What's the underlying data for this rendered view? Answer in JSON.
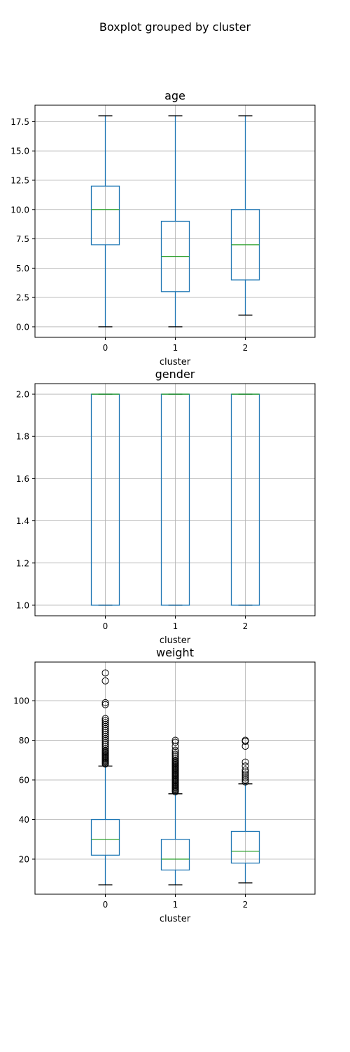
{
  "title": "Boxplot grouped by cluster",
  "chart_data": [
    {
      "type": "box",
      "title": "age",
      "xlabel": "cluster",
      "ylabel": "",
      "categories": [
        "0",
        "1",
        "2"
      ],
      "ylim": [
        -0.9,
        18.9
      ],
      "yticks": [
        0.0,
        2.5,
        5.0,
        7.5,
        10.0,
        12.5,
        15.0,
        17.5
      ],
      "ytick_labels": [
        "0.0",
        "2.5",
        "5.0",
        "7.5",
        "10.0",
        "12.5",
        "15.0",
        "17.5"
      ],
      "grid": true,
      "boxes": [
        {
          "category": "0",
          "whislo": 0,
          "q1": 7,
          "median": 10,
          "q3": 12,
          "whishi": 18,
          "fliers": []
        },
        {
          "category": "1",
          "whislo": 0,
          "q1": 3,
          "median": 6,
          "q3": 9,
          "whishi": 18,
          "fliers": []
        },
        {
          "category": "2",
          "whislo": 1,
          "q1": 4,
          "median": 7,
          "q3": 10,
          "whishi": 18,
          "fliers": []
        }
      ]
    },
    {
      "type": "box",
      "title": "gender",
      "xlabel": "cluster",
      "ylabel": "",
      "categories": [
        "0",
        "1",
        "2"
      ],
      "ylim": [
        0.95,
        2.05
      ],
      "yticks": [
        1.0,
        1.2,
        1.4,
        1.6,
        1.8,
        2.0
      ],
      "ytick_labels": [
        "1.0",
        "1.2",
        "1.4",
        "1.6",
        "1.8",
        "2.0"
      ],
      "grid": true,
      "boxes": [
        {
          "category": "0",
          "whislo": 1,
          "q1": 1,
          "median": 2,
          "q3": 2,
          "whishi": 2,
          "fliers": []
        },
        {
          "category": "1",
          "whislo": 1,
          "q1": 1,
          "median": 2,
          "q3": 2,
          "whishi": 2,
          "fliers": []
        },
        {
          "category": "2",
          "whislo": 1,
          "q1": 1,
          "median": 2,
          "q3": 2,
          "whishi": 2,
          "fliers": []
        }
      ]
    },
    {
      "type": "box",
      "title": "weight",
      "xlabel": "cluster",
      "ylabel": "",
      "categories": [
        "0",
        "1",
        "2"
      ],
      "ylim": [
        2.3,
        119.5
      ],
      "yticks": [
        20,
        40,
        60,
        80,
        100
      ],
      "ytick_labels": [
        "20",
        "40",
        "60",
        "80",
        "100"
      ],
      "grid": true,
      "boxes": [
        {
          "category": "0",
          "whislo": 7,
          "q1": 22,
          "median": 30,
          "q3": 40,
          "whishi": 67,
          "fliers": [
            68,
            68.5,
            69,
            69.5,
            70,
            70.5,
            71,
            71.5,
            72,
            72.5,
            73,
            73.5,
            74,
            74.5,
            75,
            76,
            77,
            78,
            79,
            80,
            81,
            82,
            83,
            84,
            85,
            86,
            87,
            88,
            89,
            90,
            91,
            98,
            99,
            110,
            114
          ]
        },
        {
          "category": "1",
          "whislo": 7,
          "q1": 14.5,
          "median": 20,
          "q3": 30,
          "whishi": 53,
          "fliers": [
            54,
            54.5,
            55,
            55.5,
            56,
            56.5,
            57,
            57.5,
            58,
            58.5,
            59,
            59.5,
            60,
            60.5,
            61,
            61.5,
            62,
            62.5,
            63,
            63.5,
            64,
            64.5,
            65,
            65.5,
            66,
            66.5,
            67,
            67.5,
            68,
            68.5,
            69,
            69.5,
            70,
            71,
            72,
            73,
            74,
            75,
            77,
            79,
            80
          ]
        },
        {
          "category": "2",
          "whislo": 8,
          "q1": 18,
          "median": 24,
          "q3": 34,
          "whishi": 58,
          "fliers": [
            59,
            60,
            61,
            62,
            63,
            64,
            65,
            67,
            69,
            77,
            79.5,
            80
          ]
        }
      ]
    }
  ],
  "colors": {
    "box": "#1f77b4",
    "median": "#2ca02c",
    "whisker_cap": "#000000",
    "grid": "#b0b0b0",
    "axes": "#000000"
  }
}
